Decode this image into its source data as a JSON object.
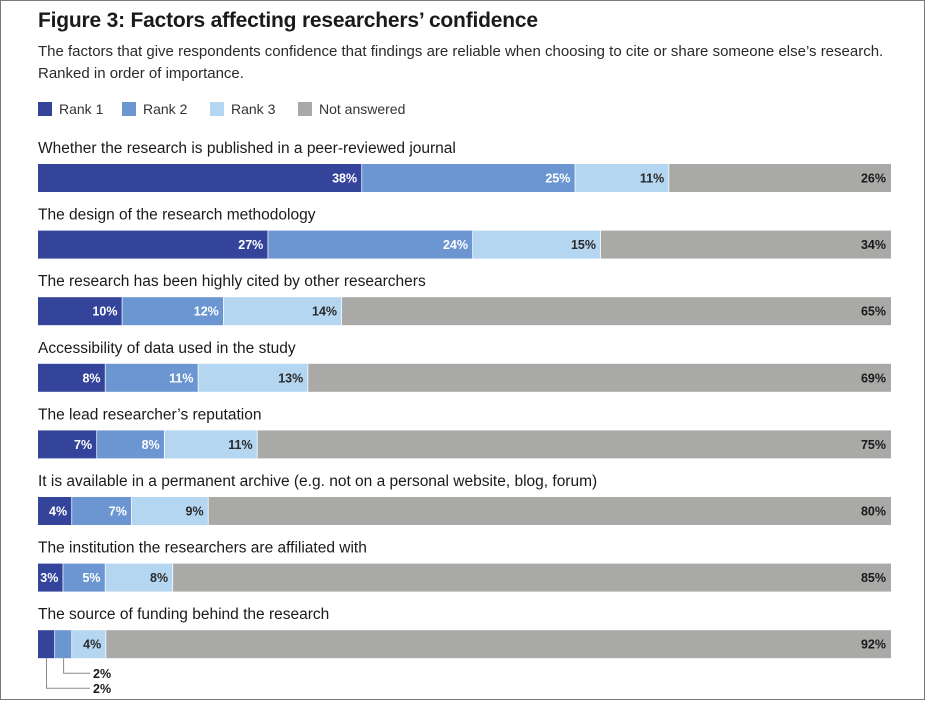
{
  "figure": {
    "title": "Figure 3: Factors affecting researchers’ confidence",
    "subtitle": "The factors that give respondents confidence that findings are reliable when choosing to cite or share someone else’s research. Ranked in order of importance."
  },
  "chart_data": {
    "type": "bar",
    "orientation": "horizontal-stacked-100",
    "title": "Figure 3: Factors affecting researchers’ confidence",
    "series": [
      {
        "name": "Rank 1",
        "color": "#34449a",
        "label_color": "#ffffff",
        "values": [
          38,
          27,
          10,
          8,
          7,
          4,
          3,
          2
        ]
      },
      {
        "name": "Rank 2",
        "color": "#6b96d2",
        "label_color": "#ffffff",
        "values": [
          25,
          24,
          12,
          11,
          8,
          7,
          5,
          2
        ]
      },
      {
        "name": "Rank 3",
        "color": "#b5d6f1",
        "label_color": "#2a2a2a",
        "values": [
          11,
          15,
          14,
          13,
          11,
          9,
          8,
          4
        ]
      },
      {
        "name": "Not answered",
        "color": "#a9a9a7",
        "label_color": "#1a1a1a",
        "values": [
          26,
          34,
          65,
          69,
          75,
          80,
          85,
          92
        ]
      }
    ],
    "categories": [
      "Whether the research is published in a peer-reviewed journal",
      "The design of the research methodology",
      "The research has been highly cited by other researchers",
      "Accessibility of data used in the study",
      "The lead researcher’s reputation",
      "It is available in a permanent archive (e.g. not on a personal website, blog, forum)",
      "The institution the researchers are affiliated with",
      "The source of funding behind the research"
    ],
    "value_suffix": "%",
    "legend_position": "top-left",
    "callouts": {
      "category_index": 7,
      "series_indices": [
        1,
        0
      ]
    }
  }
}
